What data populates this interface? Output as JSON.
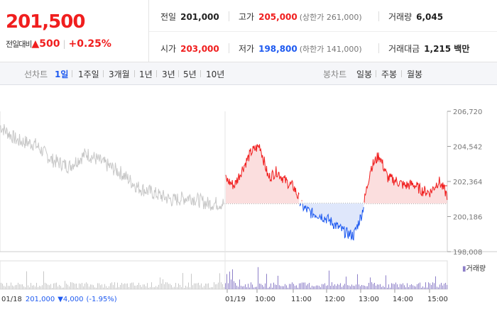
{
  "price": {
    "current": "201,500",
    "change_label": "전일대비",
    "change_arrow": "▲",
    "change_value": "500",
    "change_pct": "+0.25%"
  },
  "stats": {
    "prev_label": "전일",
    "prev_value": "201,000",
    "high_label": "고가",
    "high_value": "205,000",
    "high_sub": "(상한가 261,000)",
    "volume_label": "거래량",
    "volume_value": "6,045",
    "open_label": "시가",
    "open_value": "203,000",
    "low_label": "저가",
    "low_value": "198,800",
    "low_sub": "(하한가 141,000)",
    "amount_label": "거래대금",
    "amount_value": "1,215 백만"
  },
  "tabs": {
    "line_header": "선차트",
    "line": [
      "1일",
      "1주일",
      "3개월",
      "1년",
      "3년",
      "5년",
      "10년"
    ],
    "active": "1일",
    "candle_header": "봉차트",
    "candle": [
      "일봉",
      "주봉",
      "월봉"
    ]
  },
  "colors": {
    "up": "#f01e1e",
    "down": "#1e5af0",
    "prev_day": "#c8c8c8",
    "volume": "#8d7fc8"
  },
  "chart_data": {
    "type": "line",
    "title": "",
    "y_ticks": [
      "206,720",
      "204,542",
      "202,364",
      "200,186",
      "198,008"
    ],
    "ylim": [
      198008,
      206720
    ],
    "baseline": 201000,
    "x_labels": [
      "01/18",
      "01/19",
      "10:00",
      "11:00",
      "12:00",
      "13:00",
      "14:00",
      "15:00"
    ],
    "volume_legend": "거래량",
    "prev_day_info": {
      "date": "01/18",
      "close": "201,000",
      "arrow": "▼",
      "change": "4,000",
      "pct": "(-1.95%)"
    },
    "series": [
      {
        "name": "",
        "time": [
          "01/18 09:00",
          "01/18 09:30",
          "01/18 10:00",
          "01/18 10:30",
          "01/18 11:00",
          "01/18 11:30",
          "01/18 12:00",
          "01/18 12:30",
          "01/18 13:00",
          "01/18 13:30",
          "01/18 14:00",
          "01/18 14:30",
          "01/18 15:00",
          "01/18 15:30"
        ],
        "values": [
          205800,
          204900,
          204700,
          203700,
          203300,
          204100,
          203500,
          202900,
          202000,
          201600,
          201200,
          201400,
          201000,
          201000
        ]
      },
      {
        "name": "",
        "time": [
          "09:00",
          "09:15",
          "09:30",
          "09:45",
          "10:00",
          "10:15",
          "10:30",
          "10:45",
          "11:00",
          "11:15",
          "11:30",
          "11:45",
          "12:00",
          "12:15",
          "12:30",
          "12:45",
          "13:00",
          "13:15",
          "13:30",
          "13:45",
          "14:00",
          "14:15",
          "14:30",
          "14:45",
          "15:00",
          "15:15",
          "15:20"
        ],
        "values": [
          202500,
          202100,
          203200,
          204200,
          204600,
          202600,
          203000,
          202400,
          202000,
          200800,
          200400,
          200300,
          200000,
          199600,
          199200,
          199000,
          200400,
          203200,
          204000,
          202600,
          202400,
          202100,
          202200,
          201800,
          201700,
          202400,
          201500
        ]
      }
    ]
  }
}
